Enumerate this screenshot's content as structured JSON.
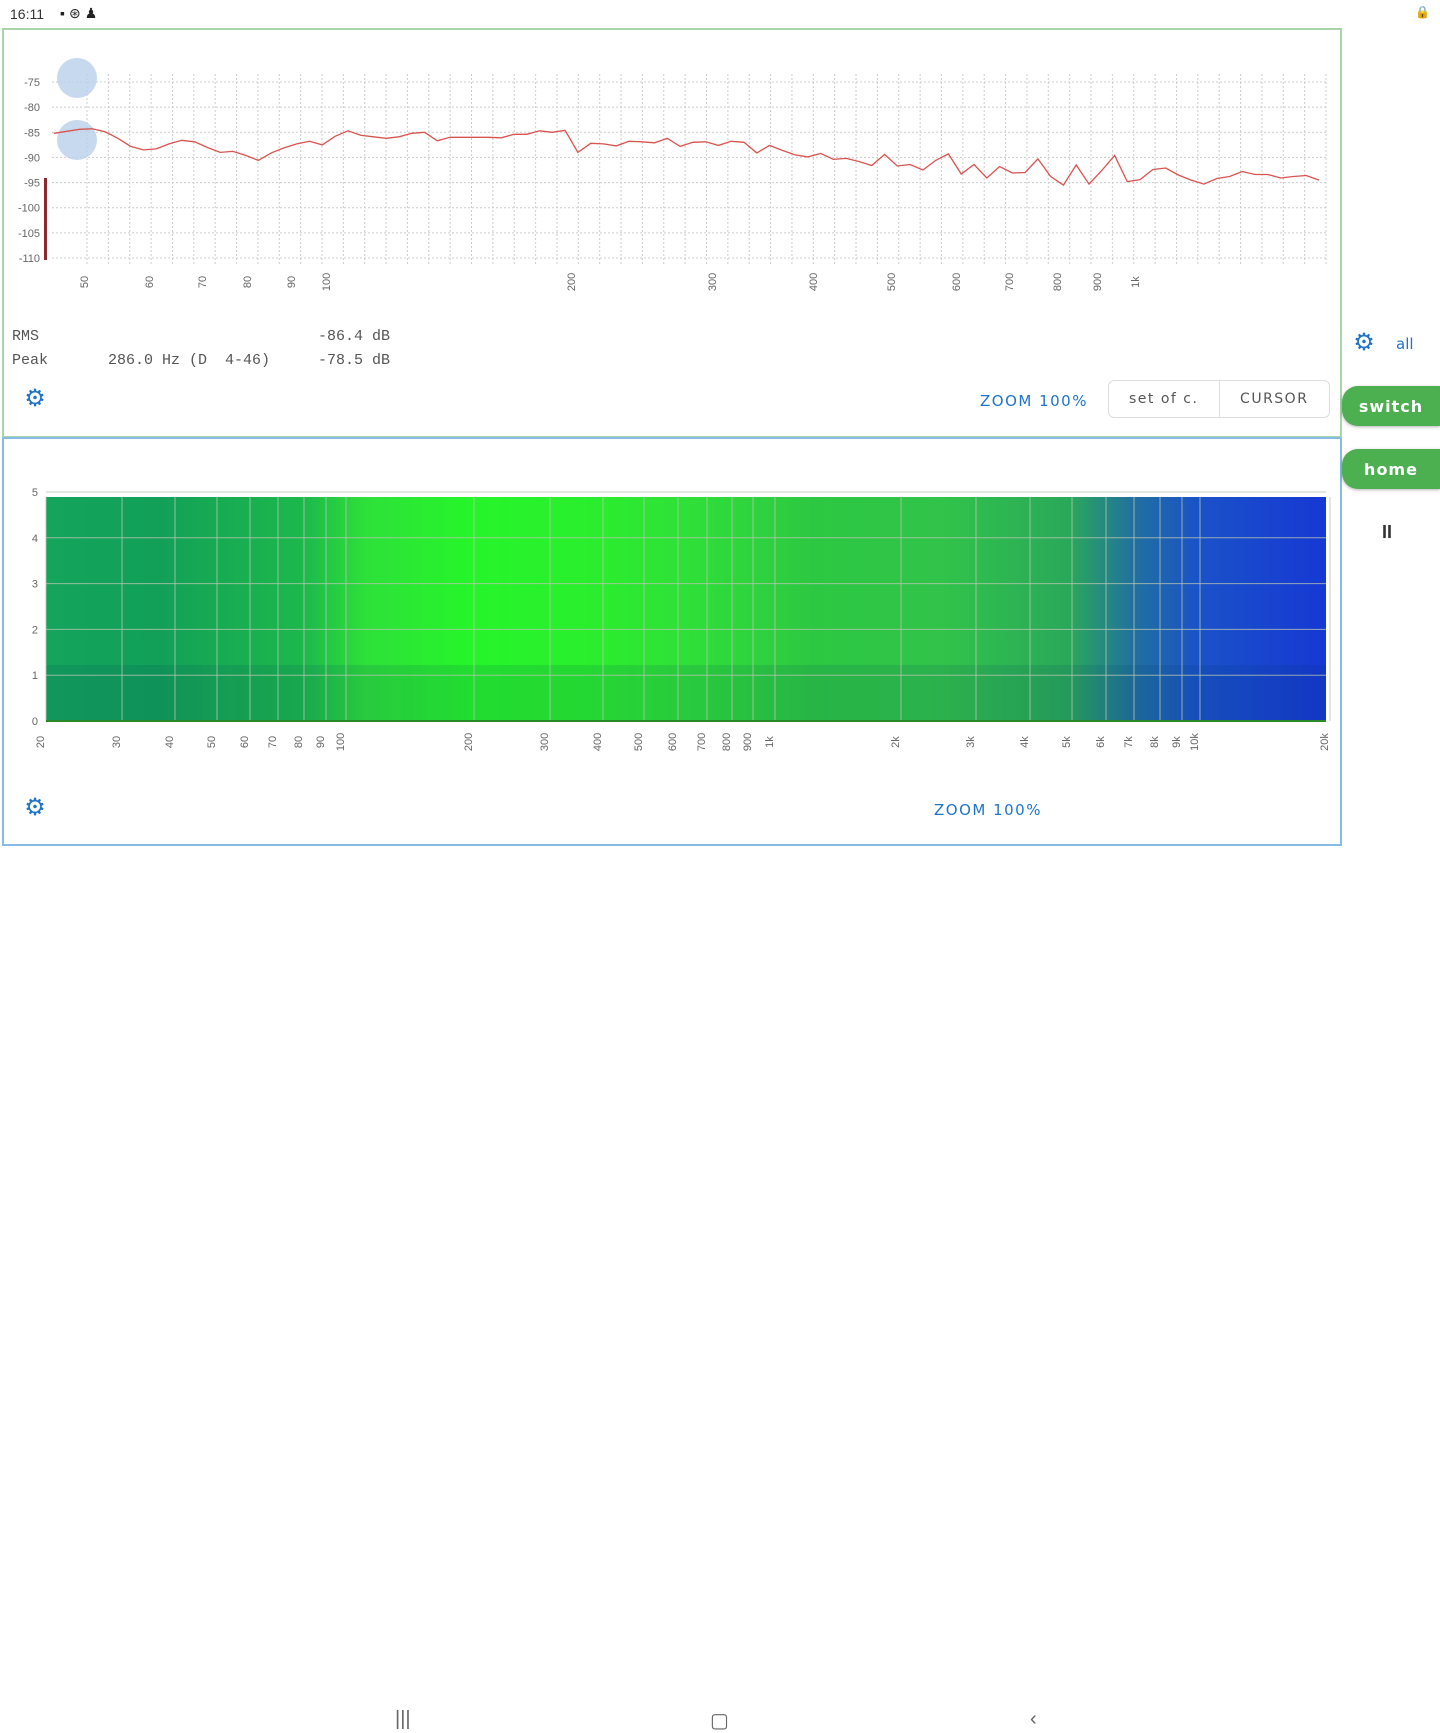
{
  "status": {
    "time": "16:11",
    "icons": [
      "sd-card-icon",
      "sync-icon",
      "user-icon"
    ],
    "right_icon": "lock-icon"
  },
  "spectrum": {
    "y_ticks": [
      "-75",
      "-80",
      "-85",
      "-90",
      "-95",
      "-100",
      "-105",
      "-110"
    ],
    "x_ticks": [
      "50",
      "60",
      "70",
      "80",
      "90",
      "100",
      "200",
      "300",
      "400",
      "500",
      "600",
      "700",
      "800",
      "900",
      "1k"
    ],
    "rms_label": "RMS",
    "rms_value": "-86.4 dB",
    "peak_label": "Peak",
    "peak_freq": "286.0 Hz (D  4-46)",
    "peak_value": "-78.5 dB",
    "zoom_label": "ZOOM 100%",
    "btn_set": "set of c.",
    "btn_cursor": "CURSOR",
    "line_color": "#d9534f"
  },
  "spectrogram": {
    "y_ticks": [
      "5",
      "4",
      "3",
      "2",
      "1",
      "0"
    ],
    "x_ticks": [
      "20",
      "30",
      "40",
      "50",
      "60",
      "70",
      "80",
      "90",
      "100",
      "200",
      "300",
      "400",
      "500",
      "600",
      "700",
      "800",
      "900",
      "1k",
      "2k",
      "3k",
      "4k",
      "5k",
      "6k",
      "7k",
      "8k",
      "9k",
      "10k",
      "20k"
    ],
    "zoom_label": "ZOOM 100%"
  },
  "side": {
    "all_label": "all",
    "switch_label": "switch",
    "home_label": "home",
    "pause_label": "II"
  },
  "nav": {
    "recents": "|||",
    "home": "▢",
    "back": "‹"
  },
  "colors": {
    "accent": "#1e74c8",
    "green_button": "#4caf50"
  }
}
